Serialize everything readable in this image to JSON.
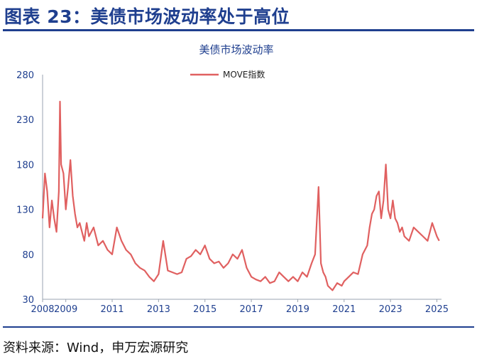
{
  "figure_title": "图表 23：美债市场波动率处于高位",
  "source_note": "资料来源：Wind，申万宏源研究",
  "colors": {
    "series": "#e06060",
    "accent": "#1f3f8f"
  },
  "chart_data": {
    "type": "line",
    "title": "美债市场波动率",
    "xlabel": "",
    "ylabel": "",
    "legend_position": "top-center",
    "grid": false,
    "xlim": [
      2008,
      2025.2
    ],
    "ylim": [
      30,
      280
    ],
    "x_ticks": [
      "2008",
      "2009",
      "2011",
      "2013",
      "2015",
      "2017",
      "2019",
      "2021",
      "2023",
      "2025"
    ],
    "y_ticks": [
      "30",
      "80",
      "130",
      "180",
      "230",
      "280"
    ],
    "series": [
      {
        "name": "MOVE指数",
        "x": [
          2008.0,
          2008.1,
          2008.2,
          2008.3,
          2008.4,
          2008.5,
          2008.6,
          2008.7,
          2008.75,
          2008.8,
          2008.9,
          2009.0,
          2009.1,
          2009.2,
          2009.3,
          2009.4,
          2009.5,
          2009.6,
          2009.7,
          2009.8,
          2009.9,
          2010.0,
          2010.2,
          2010.4,
          2010.6,
          2010.8,
          2011.0,
          2011.2,
          2011.4,
          2011.6,
          2011.8,
          2012.0,
          2012.2,
          2012.4,
          2012.6,
          2012.8,
          2013.0,
          2013.2,
          2013.4,
          2013.6,
          2013.8,
          2014.0,
          2014.2,
          2014.4,
          2014.6,
          2014.8,
          2015.0,
          2015.2,
          2015.4,
          2015.6,
          2015.8,
          2016.0,
          2016.2,
          2016.4,
          2016.6,
          2016.8,
          2017.0,
          2017.2,
          2017.4,
          2017.6,
          2017.8,
          2018.0,
          2018.2,
          2018.4,
          2018.6,
          2018.8,
          2019.0,
          2019.2,
          2019.4,
          2019.6,
          2019.75,
          2019.9,
          2020.0,
          2020.1,
          2020.2,
          2020.3,
          2020.5,
          2020.7,
          2020.9,
          2021.0,
          2021.2,
          2021.4,
          2021.6,
          2021.8,
          2022.0,
          2022.1,
          2022.2,
          2022.3,
          2022.4,
          2022.5,
          2022.6,
          2022.7,
          2022.8,
          2022.9,
          2023.0,
          2023.1,
          2023.2,
          2023.3,
          2023.4,
          2023.5,
          2023.6,
          2023.8,
          2024.0,
          2024.2,
          2024.4,
          2024.6,
          2024.8,
          2025.0,
          2025.1
        ],
        "y": [
          120,
          170,
          150,
          110,
          140,
          120,
          105,
          150,
          250,
          180,
          170,
          130,
          155,
          185,
          145,
          125,
          110,
          115,
          105,
          95,
          115,
          100,
          110,
          90,
          95,
          85,
          80,
          110,
          95,
          85,
          80,
          70,
          65,
          62,
          55,
          50,
          58,
          95,
          62,
          60,
          58,
          60,
          75,
          78,
          85,
          80,
          90,
          75,
          70,
          72,
          65,
          70,
          80,
          75,
          85,
          65,
          55,
          52,
          50,
          55,
          48,
          50,
          60,
          55,
          50,
          55,
          50,
          60,
          55,
          70,
          80,
          155,
          70,
          60,
          55,
          45,
          40,
          48,
          45,
          50,
          55,
          60,
          58,
          80,
          90,
          110,
          125,
          130,
          145,
          150,
          120,
          140,
          180,
          130,
          120,
          140,
          120,
          115,
          105,
          110,
          100,
          95,
          110,
          105,
          100,
          95,
          115,
          100,
          95
        ]
      }
    ]
  }
}
